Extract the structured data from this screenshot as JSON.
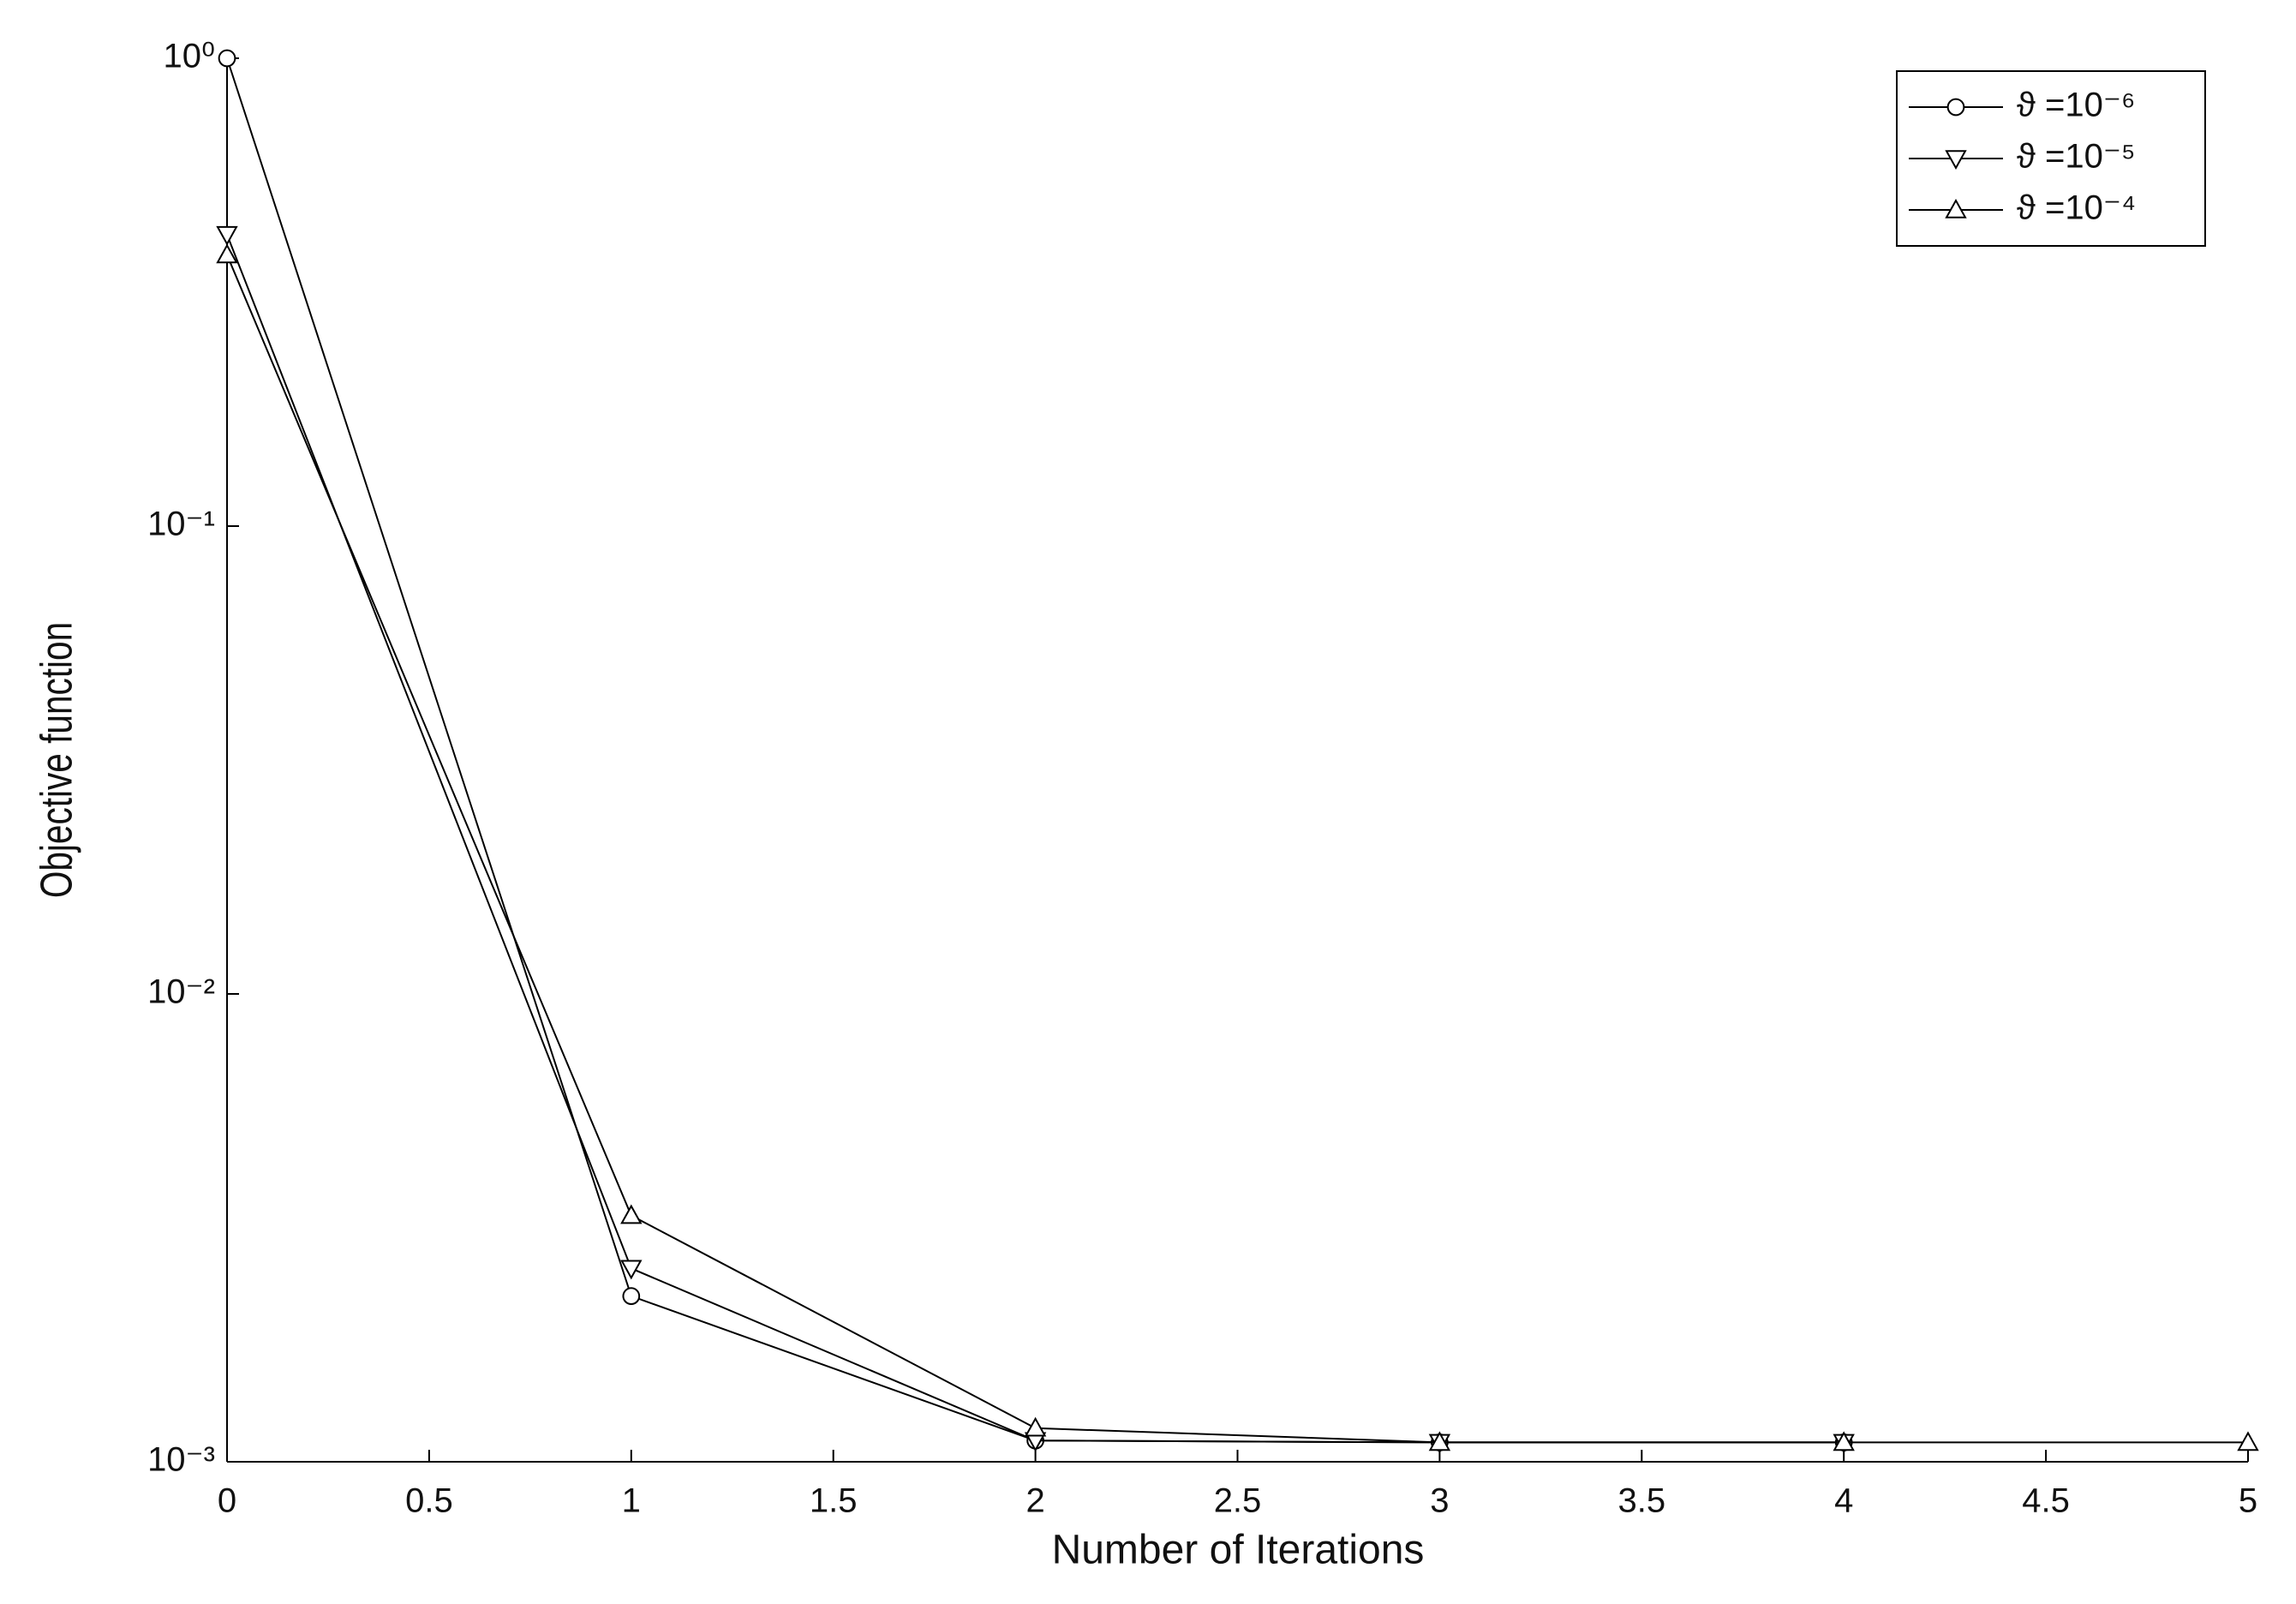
{
  "chart_data": {
    "type": "line",
    "xlabel": "Number of Iterations",
    "ylabel": "Objective function",
    "x": [
      0,
      1,
      2,
      3,
      4,
      5
    ],
    "series": [
      {
        "name": "ϑ =10⁻⁶",
        "color": "#000000",
        "marker": "circle",
        "values": [
          1.0,
          0.00226,
          0.00111,
          0.0011,
          0.0011,
          null
        ]
      },
      {
        "name": "ϑ =10⁻⁵",
        "color": "#000000",
        "marker": "triangle-down",
        "values": [
          0.42,
          0.00259,
          0.00111,
          0.0011,
          0.0011,
          null
        ]
      },
      {
        "name": "ϑ =10⁻⁴",
        "color": "#000000",
        "marker": "triangle-up",
        "values": [
          0.38,
          0.00336,
          0.00118,
          0.0011,
          0.0011,
          0.0011
        ]
      }
    ],
    "xlim": [
      0,
      5
    ],
    "xticks": [
      0,
      0.5,
      1,
      1.5,
      2,
      2.5,
      3,
      3.5,
      4,
      4.5,
      5
    ],
    "ylim": [
      0.001,
      1
    ],
    "yticks": [
      {
        "value": 0.001,
        "label": "10⁻³"
      },
      {
        "value": 0.01,
        "label": "10⁻²"
      },
      {
        "value": 0.1,
        "label": "10⁻¹"
      },
      {
        "value": 1,
        "label": "10⁰"
      }
    ],
    "ylog": true,
    "grid": false,
    "legend": "upper right"
  }
}
